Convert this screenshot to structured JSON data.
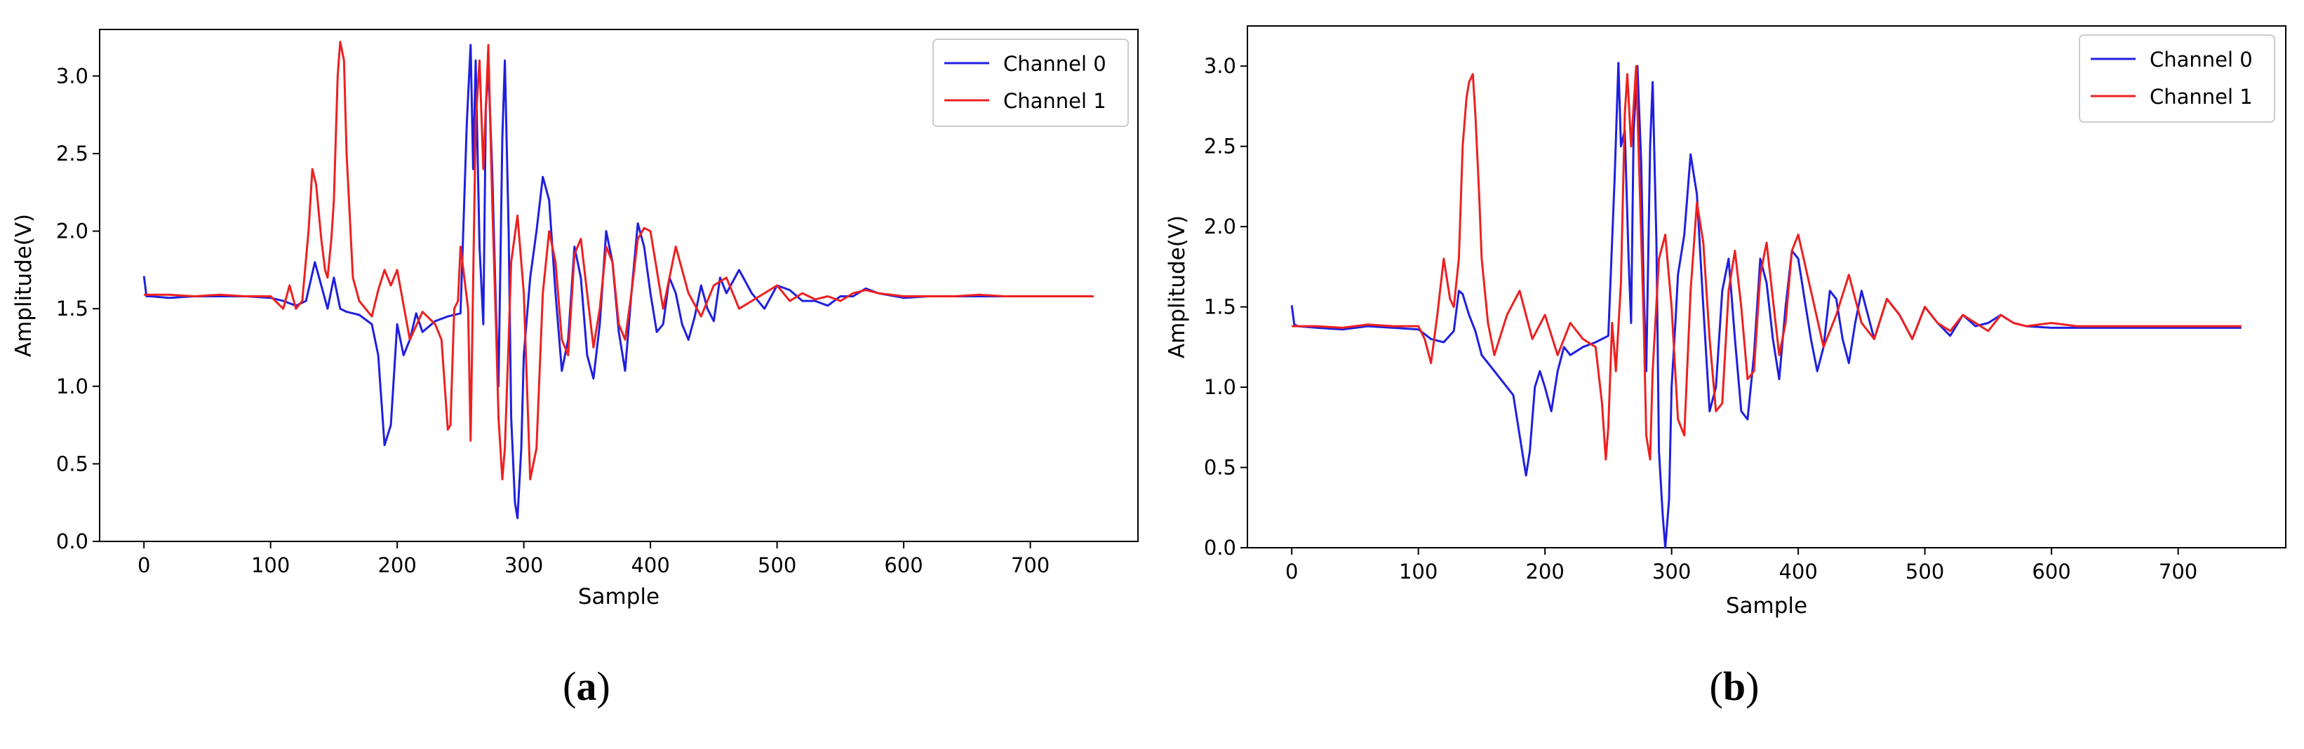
{
  "figure": {
    "colors": {
      "series0": "#1f1fe0",
      "series1": "#ee2020",
      "axis": "#000000"
    },
    "captions": [
      {
        "open": "(",
        "letter": "a",
        "close": ")"
      },
      {
        "open": "(",
        "letter": "b",
        "close": ")"
      }
    ]
  },
  "chart_data": [
    {
      "type": "line",
      "xlabel": "Sample",
      "ylabel": "Amplitude(V)",
      "xlim": [
        -35,
        785
      ],
      "ylim": [
        0.0,
        3.3
      ],
      "xticks": [
        0,
        100,
        200,
        300,
        400,
        500,
        600,
        700
      ],
      "yticks": [
        0.0,
        0.5,
        1.0,
        1.5,
        2.0,
        2.5,
        3.0
      ],
      "ytick_labels": [
        "0.0",
        "0.5",
        "1.0",
        "1.5",
        "2.0",
        "2.5",
        "3.0"
      ],
      "grid": false,
      "legend": "top-right",
      "series": [
        {
          "name": "Channel 0",
          "color": "#1f1fe0",
          "x": [
            0,
            2,
            5,
            20,
            40,
            60,
            80,
            100,
            110,
            120,
            128,
            135,
            140,
            145,
            150,
            155,
            160,
            170,
            180,
            185,
            190,
            195,
            200,
            205,
            210,
            215,
            220,
            230,
            240,
            250,
            255,
            258,
            260,
            262,
            265,
            268,
            270,
            272,
            275,
            278,
            280,
            283,
            285,
            288,
            290,
            293,
            295,
            298,
            300,
            303,
            305,
            310,
            315,
            320,
            325,
            330,
            335,
            340,
            345,
            350,
            355,
            360,
            365,
            370,
            375,
            380,
            385,
            390,
            395,
            400,
            405,
            410,
            415,
            420,
            425,
            430,
            435,
            440,
            445,
            450,
            455,
            460,
            470,
            480,
            490,
            500,
            510,
            520,
            530,
            540,
            550,
            560,
            570,
            580,
            600,
            620,
            640,
            660,
            680,
            700,
            720,
            750
          ],
          "y": [
            1.71,
            1.58,
            1.58,
            1.57,
            1.58,
            1.58,
            1.58,
            1.57,
            1.55,
            1.52,
            1.55,
            1.8,
            1.65,
            1.5,
            1.7,
            1.5,
            1.48,
            1.46,
            1.4,
            1.2,
            0.62,
            0.75,
            1.4,
            1.2,
            1.3,
            1.47,
            1.35,
            1.42,
            1.45,
            1.47,
            2.7,
            3.2,
            2.4,
            3.1,
            1.9,
            1.4,
            2.8,
            3.05,
            2.4,
            1.5,
            1.0,
            2.6,
            3.1,
            2.0,
            0.8,
            0.25,
            0.15,
            0.6,
            1.2,
            1.5,
            1.7,
            2.0,
            2.35,
            2.2,
            1.6,
            1.1,
            1.3,
            1.9,
            1.7,
            1.2,
            1.05,
            1.4,
            2.0,
            1.8,
            1.35,
            1.1,
            1.6,
            2.05,
            1.9,
            1.6,
            1.35,
            1.4,
            1.7,
            1.6,
            1.4,
            1.3,
            1.45,
            1.65,
            1.5,
            1.42,
            1.7,
            1.6,
            1.75,
            1.6,
            1.5,
            1.65,
            1.62,
            1.55,
            1.55,
            1.52,
            1.58,
            1.58,
            1.63,
            1.6,
            1.57,
            1.58,
            1.58,
            1.58,
            1.58,
            1.58,
            1.58,
            1.58
          ]
        },
        {
          "name": "Channel 1",
          "color": "#ee2020",
          "x": [
            0,
            20,
            40,
            60,
            80,
            100,
            110,
            115,
            120,
            125,
            130,
            133,
            136,
            140,
            143,
            145,
            148,
            150,
            153,
            155,
            158,
            160,
            165,
            170,
            175,
            180,
            185,
            190,
            195,
            200,
            210,
            220,
            230,
            235,
            240,
            242,
            245,
            248,
            250,
            253,
            256,
            258,
            262,
            265,
            268,
            272,
            275,
            278,
            280,
            283,
            285,
            288,
            290,
            295,
            300,
            305,
            310,
            315,
            320,
            325,
            330,
            335,
            340,
            345,
            350,
            355,
            360,
            365,
            370,
            375,
            380,
            385,
            390,
            395,
            400,
            410,
            420,
            430,
            440,
            450,
            460,
            470,
            480,
            490,
            500,
            510,
            520,
            530,
            540,
            550,
            560,
            570,
            580,
            600,
            620,
            640,
            660,
            680,
            700,
            720,
            750
          ],
          "y": [
            1.59,
            1.59,
            1.58,
            1.59,
            1.58,
            1.58,
            1.5,
            1.65,
            1.5,
            1.55,
            2.0,
            2.4,
            2.3,
            1.95,
            1.75,
            1.7,
            1.95,
            2.2,
            3.0,
            3.22,
            3.1,
            2.5,
            1.7,
            1.55,
            1.5,
            1.45,
            1.62,
            1.75,
            1.65,
            1.75,
            1.3,
            1.48,
            1.4,
            1.3,
            0.72,
            0.75,
            1.5,
            1.55,
            1.9,
            1.7,
            1.5,
            0.65,
            2.7,
            3.1,
            2.4,
            3.2,
            2.2,
            1.4,
            0.8,
            0.4,
            0.6,
            1.3,
            1.8,
            2.1,
            1.6,
            0.4,
            0.6,
            1.6,
            2.0,
            1.8,
            1.3,
            1.2,
            1.85,
            1.95,
            1.6,
            1.25,
            1.5,
            1.9,
            1.8,
            1.4,
            1.3,
            1.6,
            1.95,
            2.02,
            2.0,
            1.5,
            1.9,
            1.6,
            1.45,
            1.65,
            1.7,
            1.5,
            1.55,
            1.6,
            1.65,
            1.55,
            1.6,
            1.56,
            1.58,
            1.55,
            1.6,
            1.62,
            1.6,
            1.58,
            1.58,
            1.58,
            1.59,
            1.58,
            1.58,
            1.58,
            1.58
          ]
        }
      ]
    },
    {
      "type": "line",
      "xlabel": "Sample",
      "ylabel": "Amplitude(V)",
      "xlim": [
        -35,
        785
      ],
      "ylim": [
        0.0,
        3.25
      ],
      "xticks": [
        0,
        100,
        200,
        300,
        400,
        500,
        600,
        700
      ],
      "yticks": [
        0.0,
        0.5,
        1.0,
        1.5,
        2.0,
        2.5,
        3.0
      ],
      "ytick_labels": [
        "0.0",
        "0.5",
        "1.0",
        "1.5",
        "2.0",
        "2.5",
        "3.0"
      ],
      "grid": false,
      "legend": "top-right",
      "series": [
        {
          "name": "Channel 0",
          "color": "#1f1fe0",
          "x": [
            0,
            2,
            5,
            20,
            40,
            60,
            80,
            100,
            110,
            120,
            128,
            132,
            135,
            140,
            145,
            150,
            160,
            170,
            175,
            180,
            185,
            188,
            192,
            196,
            200,
            205,
            210,
            215,
            220,
            230,
            240,
            250,
            255,
            258,
            260,
            263,
            266,
            268,
            270,
            273,
            276,
            278,
            280,
            283,
            285,
            288,
            290,
            293,
            295,
            298,
            300,
            303,
            305,
            310,
            315,
            320,
            325,
            330,
            335,
            340,
            345,
            350,
            355,
            360,
            365,
            370,
            375,
            380,
            385,
            390,
            395,
            400,
            405,
            410,
            415,
            420,
            425,
            430,
            435,
            440,
            445,
            450,
            455,
            460,
            470,
            480,
            490,
            500,
            510,
            520,
            530,
            540,
            550,
            560,
            570,
            580,
            600,
            620,
            640,
            660,
            680,
            700,
            720,
            750
          ],
          "y": [
            1.51,
            1.39,
            1.38,
            1.37,
            1.36,
            1.38,
            1.37,
            1.36,
            1.3,
            1.28,
            1.35,
            1.6,
            1.58,
            1.45,
            1.35,
            1.2,
            1.1,
            1.0,
            0.95,
            0.7,
            0.45,
            0.6,
            1.0,
            1.1,
            1.0,
            0.85,
            1.1,
            1.25,
            1.2,
            1.25,
            1.28,
            1.32,
            2.3,
            3.02,
            2.5,
            2.6,
            1.8,
            1.4,
            2.6,
            3.0,
            2.4,
            1.6,
            1.1,
            2.5,
            2.9,
            1.9,
            0.6,
            0.2,
            0.0,
            0.3,
            1.0,
            1.4,
            1.7,
            1.95,
            2.45,
            2.2,
            1.5,
            0.85,
            1.0,
            1.6,
            1.8,
            1.3,
            0.85,
            0.8,
            1.2,
            1.8,
            1.65,
            1.3,
            1.05,
            1.5,
            1.85,
            1.8,
            1.55,
            1.3,
            1.1,
            1.25,
            1.6,
            1.55,
            1.3,
            1.15,
            1.4,
            1.6,
            1.45,
            1.3,
            1.55,
            1.45,
            1.3,
            1.5,
            1.4,
            1.32,
            1.45,
            1.38,
            1.4,
            1.45,
            1.4,
            1.38,
            1.37,
            1.37,
            1.37,
            1.37,
            1.37,
            1.37,
            1.37,
            1.37
          ]
        },
        {
          "name": "Channel 1",
          "color": "#ee2020",
          "x": [
            0,
            20,
            40,
            60,
            80,
            100,
            105,
            110,
            115,
            120,
            125,
            128,
            132,
            135,
            138,
            140,
            143,
            145,
            148,
            150,
            155,
            160,
            170,
            180,
            190,
            200,
            210,
            220,
            230,
            240,
            245,
            248,
            250,
            253,
            256,
            260,
            263,
            265,
            268,
            272,
            275,
            278,
            280,
            283,
            285,
            290,
            295,
            300,
            305,
            310,
            315,
            320,
            325,
            330,
            335,
            340,
            345,
            350,
            355,
            360,
            365,
            370,
            375,
            380,
            385,
            390,
            395,
            400,
            410,
            420,
            430,
            440,
            450,
            460,
            470,
            480,
            490,
            500,
            510,
            520,
            530,
            540,
            550,
            560,
            570,
            580,
            600,
            620,
            640,
            660,
            680,
            700,
            720,
            750
          ],
          "y": [
            1.38,
            1.38,
            1.37,
            1.39,
            1.38,
            1.38,
            1.3,
            1.15,
            1.45,
            1.8,
            1.55,
            1.5,
            1.8,
            2.5,
            2.8,
            2.9,
            2.95,
            2.7,
            2.2,
            1.8,
            1.4,
            1.2,
            1.45,
            1.6,
            1.3,
            1.45,
            1.2,
            1.4,
            1.3,
            1.25,
            0.9,
            0.55,
            0.75,
            1.4,
            1.1,
            1.65,
            2.7,
            2.95,
            2.5,
            3.0,
            2.2,
            1.4,
            0.7,
            0.55,
            1.1,
            1.8,
            1.95,
            1.5,
            0.8,
            0.7,
            1.6,
            2.15,
            1.9,
            1.3,
            0.85,
            0.9,
            1.6,
            1.85,
            1.5,
            1.05,
            1.1,
            1.7,
            1.9,
            1.55,
            1.2,
            1.4,
            1.85,
            1.95,
            1.6,
            1.25,
            1.45,
            1.7,
            1.4,
            1.3,
            1.55,
            1.45,
            1.3,
            1.5,
            1.4,
            1.35,
            1.45,
            1.4,
            1.35,
            1.45,
            1.4,
            1.38,
            1.4,
            1.38,
            1.38,
            1.38,
            1.38,
            1.38,
            1.38,
            1.38
          ]
        }
      ]
    }
  ]
}
